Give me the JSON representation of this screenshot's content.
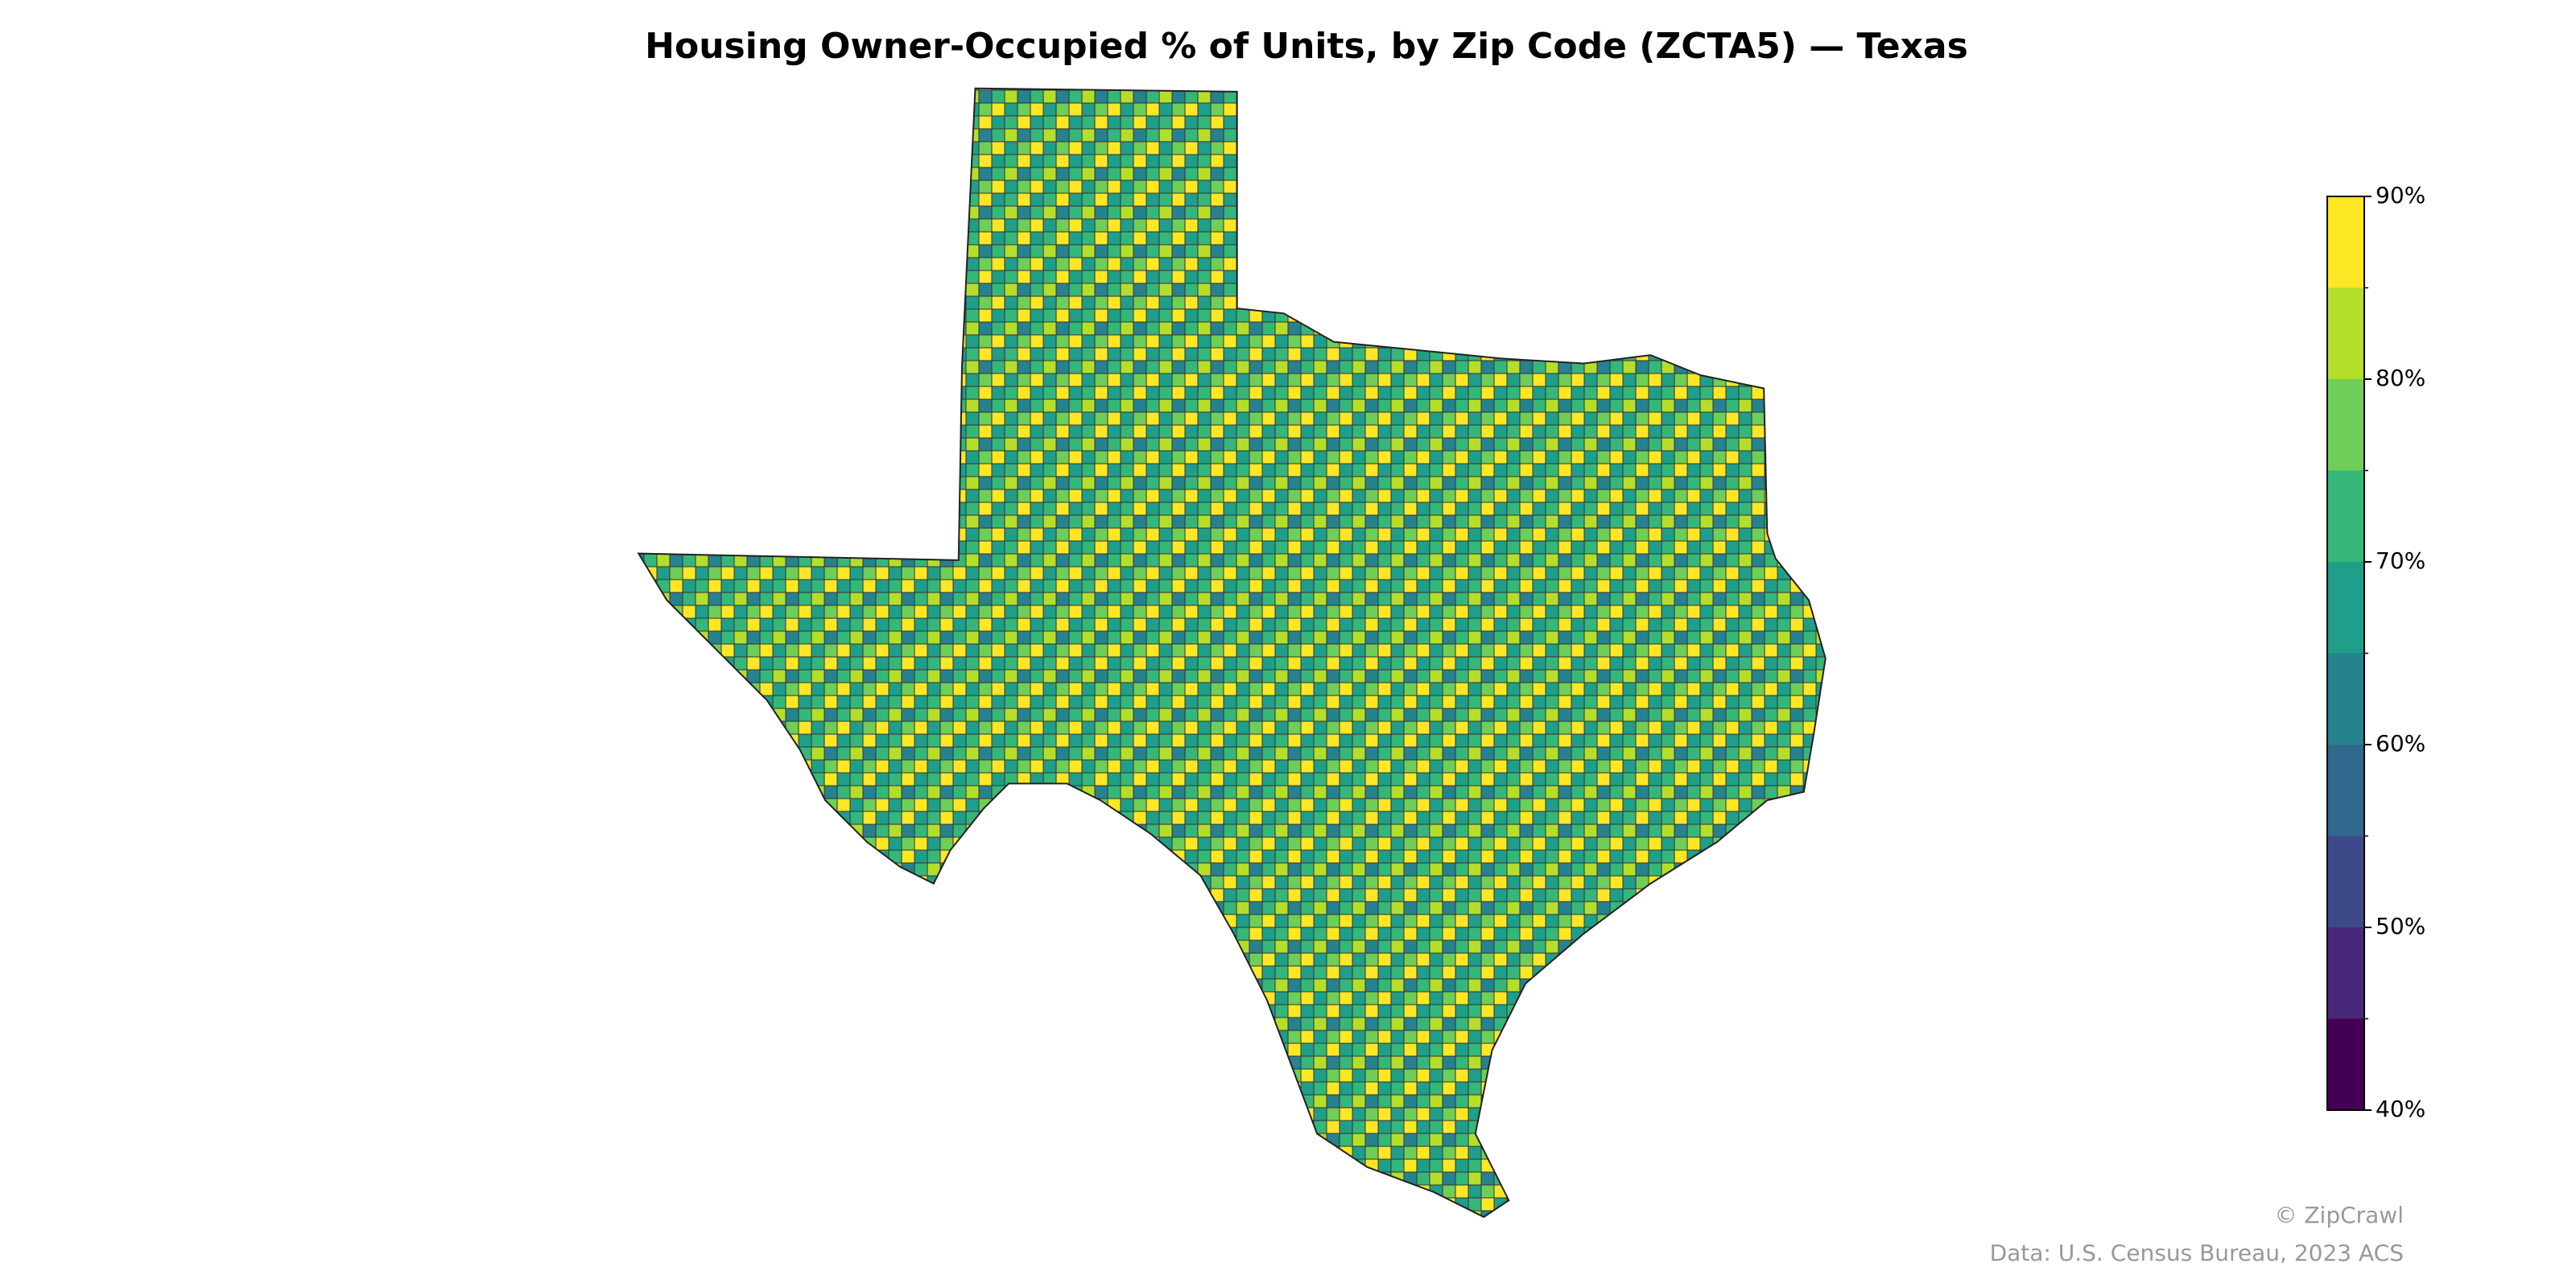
{
  "chart_data": {
    "type": "choropleth",
    "title": "Housing Owner-Occupied % of Units, by Zip Code (ZCTA5) — Texas",
    "colorbar": {
      "lim": [
        40,
        90
      ],
      "bins": [
        40,
        45,
        50,
        55,
        60,
        65,
        70,
        75,
        80,
        85,
        90
      ],
      "colors": [
        "#440154",
        "#482878",
        "#3e4989",
        "#31688e",
        "#26828e",
        "#1f9e89",
        "#35b779",
        "#6ece58",
        "#b5de2b",
        "#fde725"
      ],
      "ticks": [
        {
          "value": 40,
          "label": "40%"
        },
        {
          "value": 50,
          "label": "50%"
        },
        {
          "value": 60,
          "label": "60%"
        },
        {
          "value": 70,
          "label": "70%"
        },
        {
          "value": 80,
          "label": "80%"
        },
        {
          "value": 90,
          "label": "90%"
        }
      ]
    },
    "credits": [
      "© ZipCrawl",
      "Data: U.S. Census Bureau, 2023 ACS"
    ]
  }
}
